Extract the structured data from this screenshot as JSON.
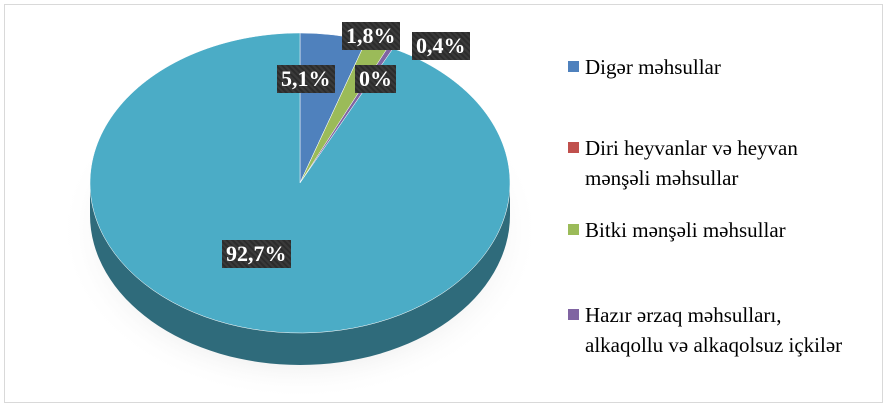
{
  "chart_data": {
    "type": "pie3d",
    "categories": [
      "Digər məhsullar",
      "Diri heyvanlar və heyvan mənşəli məhsullar",
      "Bitki mənşəli məhsullar",
      "Hazır ərzaq məhsulları, alkaqollu və alkaqolsuz içkilər",
      null
    ],
    "values": [
      5.1,
      0,
      1.8,
      0.4,
      92.7
    ],
    "value_labels": [
      "5,1%",
      "0%",
      "1,8%",
      "0,4%",
      "92,7%"
    ],
    "colors": [
      "#4f81bd",
      "#c0504d",
      "#9bbb59",
      "#8064a2",
      "#4bacc6"
    ],
    "legend": "right"
  }
}
